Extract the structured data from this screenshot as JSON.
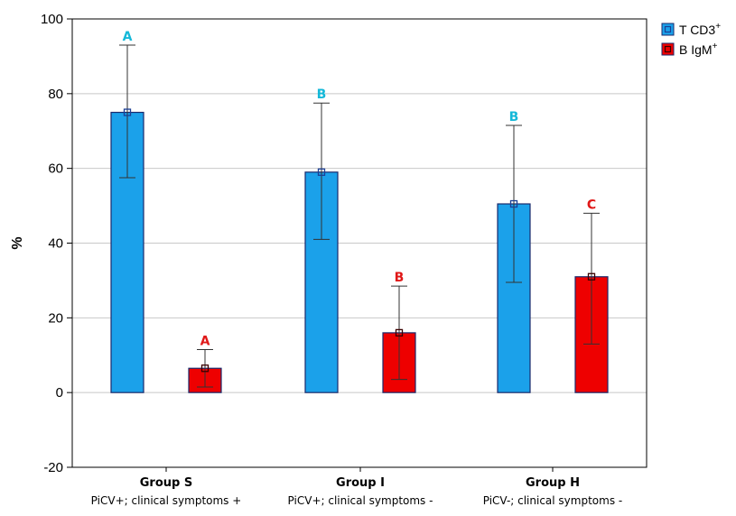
{
  "chart_data": {
    "type": "bar",
    "ylabel": "%",
    "ylim": [
      -20,
      100
    ],
    "yticks": [
      "-20",
      "0",
      "20",
      "40",
      "60",
      "80",
      "100"
    ],
    "grid": "horizontal",
    "legend_position": "top-right",
    "categories": [
      "Group S",
      "Group I",
      "Group H"
    ],
    "subcategories": [
      "PiCV+; clinical symptoms +",
      "PiCV+; clinical symptoms -",
      "PiCV-; clinical symptoms -"
    ],
    "series": [
      {
        "name": "T CD3",
        "name_sup": "+",
        "color": "#1ba1ea",
        "marker_color": "#1c3f94",
        "values": [
          75,
          59,
          50.5
        ],
        "err_low": [
          57.5,
          41,
          29.5
        ],
        "err_high": [
          93,
          77.5,
          71.5
        ],
        "letters": [
          "A",
          "B",
          "B"
        ],
        "letter_color": "#14b8d8"
      },
      {
        "name": "B IgM",
        "name_sup": "+",
        "color": "#ee0000",
        "marker_color": "#3a0000",
        "values": [
          6.5,
          16,
          31
        ],
        "err_low": [
          1.5,
          3.5,
          13
        ],
        "err_high": [
          11.5,
          28.5,
          48
        ],
        "letters": [
          "A",
          "B",
          "C"
        ],
        "letter_color": "#e01818"
      }
    ]
  }
}
